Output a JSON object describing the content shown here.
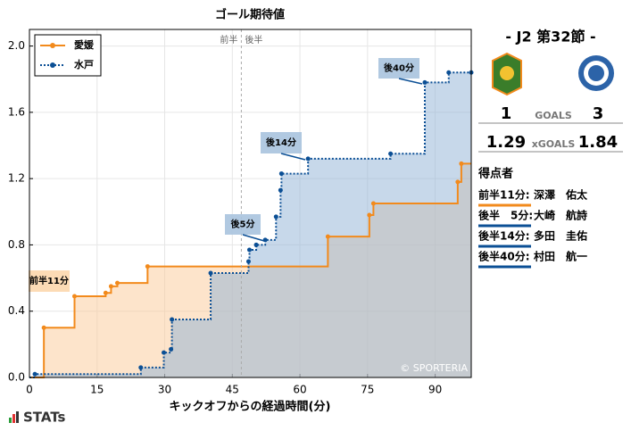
{
  "chart_data": {
    "type": "step",
    "title": "ゴール期待値",
    "x_label": "キックオフからの経過時間(分)",
    "xlim": [
      0,
      98
    ],
    "ylim": [
      0,
      2.1
    ],
    "xticks": [
      0,
      15,
      30,
      45,
      60,
      75,
      90
    ],
    "yticks": [
      {
        "value": 0,
        "label": "0.0"
      },
      0.4,
      0.8,
      1.2,
      1.6,
      {
        "value": 2,
        "label": "2.0"
      }
    ],
    "grid": true,
    "legend": "upper left",
    "half_line": {
      "x": 47,
      "left": "前半",
      "right": "後半"
    },
    "series": [
      {
        "name": "愛媛",
        "color": "#f28a1c",
        "fill": "#fbc998",
        "style": "solid",
        "x": [
          3.2,
          10,
          16.9,
          18.1,
          19.5,
          26.2,
          66.2,
          75.4,
          76.3,
          95,
          95.8
        ],
        "values": [
          0.3,
          0.49,
          0.51,
          0.55,
          0.57,
          0.67,
          0.85,
          0.98,
          1.05,
          1.18,
          1.29
        ]
      },
      {
        "name": "水戸",
        "color": "#0b4f95",
        "fill": "#8fb1d6",
        "style": "dotted",
        "x": [
          1.2,
          24.7,
          29.8,
          31.4,
          31.6,
          40.2,
          48.6,
          48.8,
          50.3,
          52.3,
          54.7,
          55.7,
          55.9,
          61.8,
          80.1,
          87.7,
          93,
          98
        ],
        "values": [
          0.02,
          0.06,
          0.15,
          0.17,
          0.35,
          0.63,
          0.7,
          0.77,
          0.8,
          0.83,
          0.97,
          1.13,
          1.23,
          1.32,
          1.35,
          1.78,
          1.84,
          1.84
        ]
      }
    ],
    "annotations": [
      "前半11分",
      "後5分",
      "後14分",
      "後40分"
    ],
    "credit": "© SPORTERIA"
  },
  "panel": {
    "round": "-  J2 第32節  -",
    "goals_label": "GOALS",
    "goals": [
      "1",
      "3"
    ],
    "xg_label": "xGOALS",
    "xg": [
      "1.29",
      "1.84"
    ],
    "scorers_title": "得点者",
    "scorers": [
      {
        "time": "前半11分:",
        "player": "深澤　佑太",
        "color": "#f28a1c"
      },
      {
        "time": "後半　5分:",
        "player": "大崎　航詩",
        "color": "#0b4f95"
      },
      {
        "time": "後半14分:",
        "player": "多田　圭佑",
        "color": "#0b4f95"
      },
      {
        "time": "後半40分:",
        "player": "村田　航一",
        "color": "#0b4f95"
      }
    ]
  },
  "brand": "STATs"
}
